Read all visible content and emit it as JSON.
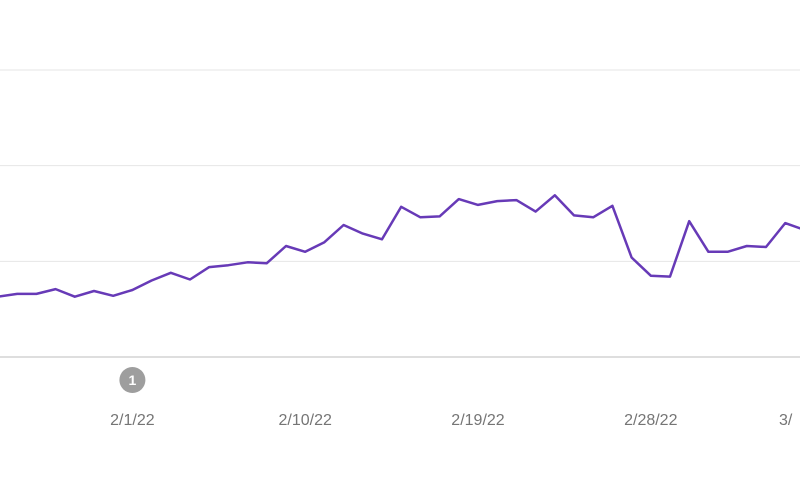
{
  "chart_data": {
    "type": "line",
    "x": [
      "1/25/22",
      "1/26/22",
      "1/27/22",
      "1/28/22",
      "1/29/22",
      "1/30/22",
      "1/31/22",
      "2/1/22",
      "2/2/22",
      "2/3/22",
      "2/4/22",
      "2/5/22",
      "2/6/22",
      "2/7/22",
      "2/8/22",
      "2/9/22",
      "2/10/22",
      "2/11/22",
      "2/12/22",
      "2/13/22",
      "2/14/22",
      "2/15/22",
      "2/16/22",
      "2/17/22",
      "2/18/22",
      "2/19/22",
      "2/20/22",
      "2/21/22",
      "2/22/22",
      "2/23/22",
      "2/24/22",
      "2/25/22",
      "2/26/22",
      "2/27/22",
      "2/28/22",
      "3/1/22",
      "3/2/22",
      "3/3/22",
      "3/4/22",
      "3/5/22",
      "3/6/22",
      "3/7/22",
      "3/8/22",
      "3/9/22"
    ],
    "series": [
      {
        "color": "#673ab7",
        "values": [
          31.5,
          33,
          33,
          35.5,
          31.5,
          34.5,
          32,
          35,
          40,
          44,
          40.5,
          47,
          48,
          49.5,
          49,
          58,
          55,
          60,
          69,
          64.5,
          61.5,
          78.5,
          73,
          73.5,
          82.5,
          79.5,
          81.5,
          82,
          76,
          84.5,
          74,
          73,
          79,
          52,
          42.5,
          42,
          71,
          55,
          55,
          58,
          57.5,
          70,
          66.5,
          55
        ]
      }
    ],
    "xticks": [
      "2/1/22",
      "2/10/22",
      "2/19/22",
      "2/28/22",
      "3/"
    ],
    "yticks": [
      0,
      50,
      100,
      150
    ],
    "ylim": [
      0,
      150
    ],
    "grid": true,
    "annotations": [
      {
        "x": "2/1/22",
        "label": "1"
      }
    ],
    "title": "",
    "xlabel": "",
    "ylabel": ""
  }
}
